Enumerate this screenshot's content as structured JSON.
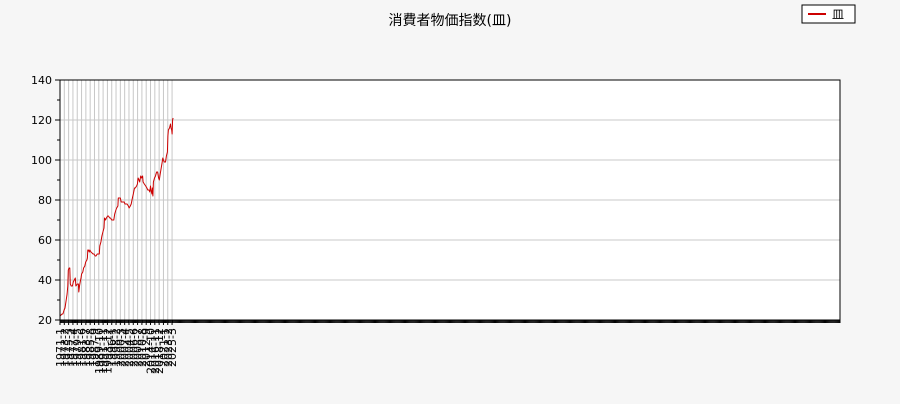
{
  "chart_data": {
    "type": "line",
    "title": "消費者物価指数(皿)",
    "xlabel": "",
    "ylabel": "",
    "ylim": [
      20,
      140
    ],
    "yticks": [
      20,
      40,
      60,
      80,
      100,
      120,
      140
    ],
    "xtick_labels": [
      "1971-1",
      "1973-2",
      "1975-3",
      "1977-4",
      "1979-5",
      "1981-6",
      "1983-7",
      "1985-8",
      "1987-9",
      "1989-10",
      "1991-11",
      "1993-12",
      "1996-1",
      "1998-2",
      "2000-3",
      "2002-4",
      "2004-5",
      "2006-6",
      "2008-7",
      "2010-8",
      "2012-9",
      "2014-10",
      "2016-11",
      "2018-12",
      "2021-1",
      "2023-2",
      "2025-3"
    ],
    "grid": true,
    "legend": {
      "position": "top-right",
      "entries": [
        "皿"
      ]
    },
    "colors": {
      "series": "#cc0000",
      "grid": "#c8c8c8",
      "plot_bg": "#ffffff",
      "page_bg": "#f6f6f6"
    },
    "series": [
      {
        "name": "皿",
        "points": [
          [
            "1971-01",
            22
          ],
          [
            "1972-01",
            23
          ],
          [
            "1972-06",
            23
          ],
          [
            "1973-01",
            25
          ],
          [
            "1973-06",
            26
          ],
          [
            "1974-01",
            30
          ],
          [
            "1974-06",
            33
          ],
          [
            "1974-10",
            37
          ],
          [
            "1975-01",
            45
          ],
          [
            "1975-06",
            46
          ],
          [
            "1975-10",
            46
          ],
          [
            "1976-01",
            38
          ],
          [
            "1976-06",
            37
          ],
          [
            "1977-01",
            37
          ],
          [
            "1977-06",
            39
          ],
          [
            "1977-12",
            40
          ],
          [
            "1978-06",
            41
          ],
          [
            "1978-09",
            37
          ],
          [
            "1979-06",
            38
          ],
          [
            "1979-12",
            38
          ],
          [
            "1980-02",
            34
          ],
          [
            "1980-06",
            37
          ],
          [
            "1980-10",
            39
          ],
          [
            "1981-03",
            41
          ],
          [
            "1981-06",
            43
          ],
          [
            "1982-01",
            44
          ],
          [
            "1982-06",
            46
          ],
          [
            "1983-01",
            47
          ],
          [
            "1983-06",
            49
          ],
          [
            "1984-01",
            50
          ],
          [
            "1984-04",
            51
          ],
          [
            "1984-06",
            55
          ],
          [
            "1984-10",
            55
          ],
          [
            "1985-03",
            54
          ],
          [
            "1985-06",
            55
          ],
          [
            "1986-01",
            54
          ],
          [
            "1987-01",
            53
          ],
          [
            "1987-06",
            53
          ],
          [
            "1988-01",
            52
          ],
          [
            "1988-06",
            52
          ],
          [
            "1989-01",
            53
          ],
          [
            "1989-06",
            53
          ],
          [
            "1990-01",
            53
          ],
          [
            "1990-04",
            57
          ],
          [
            "1990-10",
            59
          ],
          [
            "1991-04",
            62
          ],
          [
            "1991-10",
            64
          ],
          [
            "1992-04",
            66
          ],
          [
            "1992-07",
            71
          ],
          [
            "1993-01",
            70
          ],
          [
            "1993-06",
            71
          ],
          [
            "1994-01",
            72
          ],
          [
            "1994-06",
            72
          ],
          [
            "1995-01",
            71
          ],
          [
            "1995-06",
            71
          ],
          [
            "1996-01",
            70
          ],
          [
            "1996-06",
            70
          ],
          [
            "1997-01",
            70
          ],
          [
            "1997-06",
            73
          ],
          [
            "1998-01",
            75
          ],
          [
            "1998-06",
            76
          ],
          [
            "1999-01",
            77
          ],
          [
            "1999-03",
            81
          ],
          [
            "1999-10",
            81
          ],
          [
            "2000-03",
            81
          ],
          [
            "2000-08",
            79
          ],
          [
            "2001-01",
            79
          ],
          [
            "2001-06",
            79
          ],
          [
            "2002-01",
            79
          ],
          [
            "2002-06",
            78
          ],
          [
            "2003-01",
            78
          ],
          [
            "2003-06",
            78
          ],
          [
            "2004-01",
            77
          ],
          [
            "2004-06",
            76
          ],
          [
            "2005-01",
            77
          ],
          [
            "2005-06",
            78
          ],
          [
            "2006-01",
            81
          ],
          [
            "2006-06",
            83
          ],
          [
            "2007-01",
            86
          ],
          [
            "2007-06",
            86
          ],
          [
            "2008-01",
            87
          ],
          [
            "2008-06",
            88
          ],
          [
            "2008-10",
            91
          ],
          [
            "2009-03",
            90
          ],
          [
            "2009-07",
            89
          ],
          [
            "2010-01",
            92
          ],
          [
            "2010-06",
            91
          ],
          [
            "2010-12",
            92
          ],
          [
            "2011-03",
            89
          ],
          [
            "2011-10",
            88
          ],
          [
            "2012-06",
            87
          ],
          [
            "2013-01",
            86
          ],
          [
            "2013-06",
            85
          ],
          [
            "2014-01",
            85
          ],
          [
            "2014-06",
            84
          ],
          [
            "2014-10",
            87
          ],
          [
            "2015-01",
            85
          ],
          [
            "2015-06",
            83
          ],
          [
            "2015-09",
            86
          ],
          [
            "2015-12",
            82
          ],
          [
            "2016-03",
            89
          ],
          [
            "2016-09",
            91
          ],
          [
            "2017-03",
            92
          ],
          [
            "2017-09",
            94
          ],
          [
            "2018-03",
            94
          ],
          [
            "2018-09",
            91
          ],
          [
            "2019-01",
            90
          ],
          [
            "2019-06",
            93
          ],
          [
            "2019-12",
            96
          ],
          [
            "2020-06",
            99
          ],
          [
            "2020-09",
            101
          ],
          [
            "2021-01",
            100
          ],
          [
            "2021-06",
            99
          ],
          [
            "2022-01",
            99
          ],
          [
            "2022-06",
            102
          ],
          [
            "2022-12",
            104
          ],
          [
            "2023-03",
            112
          ],
          [
            "2023-06",
            115
          ],
          [
            "2023-12",
            116
          ],
          [
            "2024-03",
            117
          ],
          [
            "2024-06",
            118
          ],
          [
            "2024-09",
            116
          ],
          [
            "2025-01",
            115
          ],
          [
            "2025-03",
            113
          ],
          [
            "2025-06",
            120
          ],
          [
            "2025-09",
            121
          ]
        ]
      }
    ]
  }
}
